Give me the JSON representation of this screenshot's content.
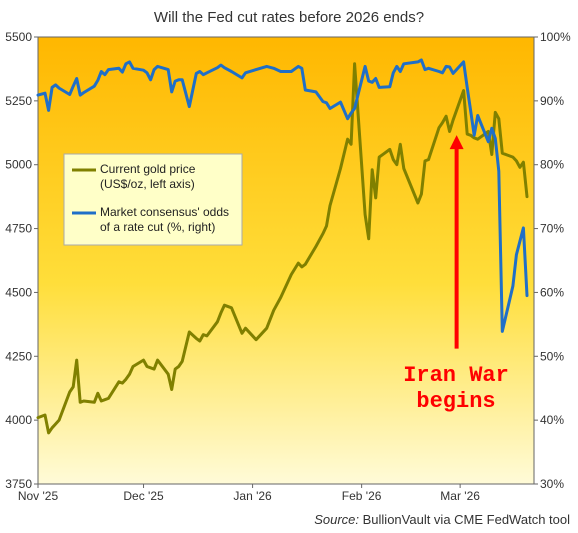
{
  "chart_data": {
    "type": "line",
    "title": "Will the Fed cut rates before 2026 ends?",
    "x_ticks": [
      "Nov '25",
      "Dec '25",
      "Jan '26",
      "Feb '26",
      "Mar '26"
    ],
    "x_range": [
      "2025-11-01",
      "2026-03-22"
    ],
    "y_left": {
      "ylim": [
        3750,
        5500
      ],
      "ticks": [
        "3750",
        "4000",
        "4250",
        "4500",
        "4750",
        "5000",
        "5250",
        "5500"
      ]
    },
    "y_right": {
      "ylim": [
        30,
        100
      ],
      "ticks": [
        "30%",
        "40%",
        "50%",
        "60%",
        "70%",
        "80%",
        "90%",
        "100%"
      ]
    },
    "series": [
      {
        "name": "Current gold price\n(US$/oz, left axis)",
        "axis": "left",
        "color": "#808000",
        "points": [
          [
            "2025-11-01",
            4010
          ],
          [
            "2025-11-03",
            4020
          ],
          [
            "2025-11-04",
            3950
          ],
          [
            "2025-11-05",
            3970
          ],
          [
            "2025-11-06",
            3985
          ],
          [
            "2025-11-07",
            4000
          ],
          [
            "2025-11-10",
            4110
          ],
          [
            "2025-11-11",
            4130
          ],
          [
            "2025-11-12",
            4235
          ],
          [
            "2025-11-13",
            4070
          ],
          [
            "2025-11-14",
            4075
          ],
          [
            "2025-11-17",
            4070
          ],
          [
            "2025-11-18",
            4105
          ],
          [
            "2025-11-19",
            4075
          ],
          [
            "2025-11-20",
            4080
          ],
          [
            "2025-11-21",
            4085
          ],
          [
            "2025-11-24",
            4150
          ],
          [
            "2025-11-25",
            4145
          ],
          [
            "2025-11-26",
            4160
          ],
          [
            "2025-11-27",
            4180
          ],
          [
            "2025-11-28",
            4210
          ],
          [
            "2025-12-01",
            4235
          ],
          [
            "2025-12-02",
            4210
          ],
          [
            "2025-12-03",
            4205
          ],
          [
            "2025-12-04",
            4200
          ],
          [
            "2025-12-05",
            4235
          ],
          [
            "2025-12-08",
            4180
          ],
          [
            "2025-12-09",
            4120
          ],
          [
            "2025-12-10",
            4200
          ],
          [
            "2025-12-11",
            4210
          ],
          [
            "2025-12-12",
            4230
          ],
          [
            "2025-12-14",
            4345
          ],
          [
            "2025-12-16",
            4320
          ],
          [
            "2025-12-17",
            4310
          ],
          [
            "2025-12-18",
            4335
          ],
          [
            "2025-12-19",
            4330
          ],
          [
            "2025-12-22",
            4385
          ],
          [
            "2025-12-23",
            4420
          ],
          [
            "2025-12-24",
            4450
          ],
          [
            "2025-12-26",
            4440
          ],
          [
            "2025-12-29",
            4340
          ],
          [
            "2025-12-30",
            4360
          ],
          [
            "2026-01-02",
            4315
          ],
          [
            "2026-01-05",
            4360
          ],
          [
            "2026-01-07",
            4430
          ],
          [
            "2026-01-09",
            4480
          ],
          [
            "2026-01-12",
            4570
          ],
          [
            "2026-01-14",
            4615
          ],
          [
            "2026-01-15",
            4600
          ],
          [
            "2026-01-16",
            4610
          ],
          [
            "2026-01-19",
            4680
          ],
          [
            "2026-01-21",
            4730
          ],
          [
            "2026-01-22",
            4760
          ],
          [
            "2026-01-23",
            4840
          ],
          [
            "2026-01-26",
            4985
          ],
          [
            "2026-01-28",
            5100
          ],
          [
            "2026-01-29",
            5080
          ],
          [
            "2026-01-30",
            5395
          ],
          [
            "2026-02-02",
            4805
          ],
          [
            "2026-02-03",
            4710
          ],
          [
            "2026-02-04",
            4980
          ],
          [
            "2026-02-05",
            4870
          ],
          [
            "2026-02-06",
            5030
          ],
          [
            "2026-02-09",
            5060
          ],
          [
            "2026-02-10",
            5020
          ],
          [
            "2026-02-11",
            5000
          ],
          [
            "2026-02-12",
            5080
          ],
          [
            "2026-02-13",
            4985
          ],
          [
            "2026-02-17",
            4850
          ],
          [
            "2026-02-18",
            4885
          ],
          [
            "2026-02-19",
            5015
          ],
          [
            "2026-02-20",
            5020
          ],
          [
            "2026-02-23",
            5145
          ],
          [
            "2026-02-24",
            5165
          ],
          [
            "2026-02-25",
            5190
          ],
          [
            "2026-02-26",
            5130
          ],
          [
            "2026-02-27",
            5175
          ],
          [
            "2026-03-02",
            5290
          ],
          [
            "2026-03-03",
            5120
          ],
          [
            "2026-03-04",
            5115
          ],
          [
            "2026-03-05",
            5105
          ],
          [
            "2026-03-06",
            5100
          ],
          [
            "2026-03-09",
            5130
          ],
          [
            "2026-03-10",
            5040
          ],
          [
            "2026-03-11",
            5205
          ],
          [
            "2026-03-12",
            5180
          ],
          [
            "2026-03-13",
            5045
          ],
          [
            "2026-03-16",
            5030
          ],
          [
            "2026-03-17",
            5015
          ],
          [
            "2026-03-18",
            4990
          ],
          [
            "2026-03-19",
            5010
          ],
          [
            "2026-03-20",
            4875
          ]
        ]
      },
      {
        "name": "Market consensus' odds\nof a rate cut (%, right)",
        "axis": "right",
        "color": "#1f6fc8",
        "points": [
          [
            "2025-11-01",
            90.9
          ],
          [
            "2025-11-03",
            91.2
          ],
          [
            "2025-11-04",
            88.5
          ],
          [
            "2025-11-05",
            92.1
          ],
          [
            "2025-11-06",
            92.5
          ],
          [
            "2025-11-07",
            92.0
          ],
          [
            "2025-11-10",
            91.0
          ],
          [
            "2025-11-11",
            92.3
          ],
          [
            "2025-11-12",
            93.5
          ],
          [
            "2025-11-13",
            90.9
          ],
          [
            "2025-11-14",
            91.3
          ],
          [
            "2025-11-17",
            92.3
          ],
          [
            "2025-11-18",
            93.2
          ],
          [
            "2025-11-19",
            94.6
          ],
          [
            "2025-11-20",
            94.1
          ],
          [
            "2025-11-21",
            94.9
          ],
          [
            "2025-11-24",
            95.1
          ],
          [
            "2025-11-25",
            94.5
          ],
          [
            "2025-11-26",
            95.8
          ],
          [
            "2025-11-27",
            96.1
          ],
          [
            "2025-11-28",
            95.1
          ],
          [
            "2025-12-01",
            94.8
          ],
          [
            "2025-12-02",
            94.4
          ],
          [
            "2025-12-03",
            93.3
          ],
          [
            "2025-12-04",
            94.9
          ],
          [
            "2025-12-05",
            95.4
          ],
          [
            "2025-12-08",
            94.9
          ],
          [
            "2025-12-09",
            91.4
          ],
          [
            "2025-12-10",
            93.1
          ],
          [
            "2025-12-11",
            93.3
          ],
          [
            "2025-12-12",
            93.3
          ],
          [
            "2025-12-14",
            89.1
          ],
          [
            "2025-12-16",
            94.3
          ],
          [
            "2025-12-17",
            94.6
          ],
          [
            "2025-12-18",
            94.1
          ],
          [
            "2025-12-19",
            94.4
          ],
          [
            "2025-12-22",
            95.2
          ],
          [
            "2025-12-23",
            95.6
          ],
          [
            "2025-12-24",
            95.2
          ],
          [
            "2025-12-26",
            94.6
          ],
          [
            "2025-12-29",
            93.6
          ],
          [
            "2025-12-30",
            94.4
          ],
          [
            "2026-01-02",
            94.9
          ],
          [
            "2026-01-05",
            95.4
          ],
          [
            "2026-01-07",
            95.1
          ],
          [
            "2026-01-09",
            94.6
          ],
          [
            "2026-01-12",
            94.6
          ],
          [
            "2026-01-14",
            95.4
          ],
          [
            "2026-01-15",
            95.1
          ],
          [
            "2026-01-16",
            91.7
          ],
          [
            "2026-01-19",
            91.4
          ],
          [
            "2026-01-21",
            89.9
          ],
          [
            "2026-01-22",
            89.7
          ],
          [
            "2026-01-23",
            88.8
          ],
          [
            "2026-01-26",
            89.8
          ],
          [
            "2026-01-28",
            87.2
          ],
          [
            "2026-01-29",
            88.1
          ],
          [
            "2026-01-30",
            88.8
          ],
          [
            "2026-02-02",
            95.4
          ],
          [
            "2026-02-03",
            93.1
          ],
          [
            "2026-02-04",
            92.9
          ],
          [
            "2026-02-05",
            93.5
          ],
          [
            "2026-02-06",
            92.1
          ],
          [
            "2026-02-09",
            92.2
          ],
          [
            "2026-02-10",
            94.4
          ],
          [
            "2026-02-11",
            95.4
          ],
          [
            "2026-02-12",
            94.6
          ],
          [
            "2026-02-13",
            95.8
          ],
          [
            "2026-02-17",
            96.1
          ],
          [
            "2026-02-18",
            96.4
          ],
          [
            "2026-02-19",
            94.9
          ],
          [
            "2026-02-20",
            95.1
          ],
          [
            "2026-02-23",
            94.6
          ],
          [
            "2026-02-24",
            94.4
          ],
          [
            "2026-02-25",
            95.4
          ],
          [
            "2026-02-26",
            95.3
          ],
          [
            "2026-02-27",
            94.3
          ],
          [
            "2026-03-02",
            96.1
          ],
          [
            "2026-03-03",
            92.1
          ],
          [
            "2026-03-04",
            88.4
          ],
          [
            "2026-03-05",
            84.6
          ],
          [
            "2026-03-06",
            87.7
          ],
          [
            "2026-03-09",
            83.6
          ],
          [
            "2026-03-10",
            85.7
          ],
          [
            "2026-03-11",
            84.1
          ],
          [
            "2026-03-12",
            79.0
          ],
          [
            "2026-03-13",
            53.9
          ],
          [
            "2026-03-16",
            61.0
          ],
          [
            "2026-03-17",
            65.9
          ],
          [
            "2026-03-18",
            68.0
          ],
          [
            "2026-03-19",
            70.1
          ],
          [
            "2026-03-20",
            59.5
          ]
        ]
      }
    ],
    "annotation": {
      "text_line1": "Iran War",
      "text_line2": "begins",
      "date": "2026-02-28",
      "color": "#ff0000",
      "from_value": 4280,
      "to_value": 5100
    },
    "legend_lines": [
      [
        "Current gold price",
        "(US$/oz, left axis)"
      ],
      [
        "Market consensus' odds",
        "of a rate cut (%, right)"
      ]
    ],
    "legend_position": "left-middle",
    "grid": false
  },
  "source": {
    "label": "Source:",
    "text": "BullionVault via CME FedWatch tool"
  }
}
